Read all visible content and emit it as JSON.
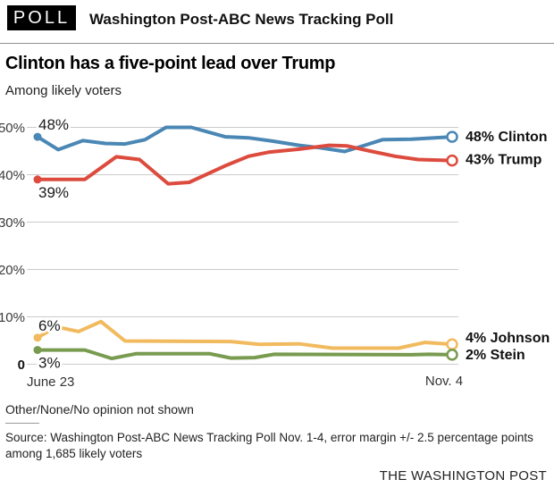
{
  "header": {
    "badge": "POLL",
    "title": "Washington Post-ABC News Tracking Poll"
  },
  "chart_data": {
    "type": "line",
    "title": "Clinton has a five-point lead over Trump",
    "subtitle": "Among likely voters",
    "x_axis": {
      "start_label": "June 23",
      "end_label": "Nov. 4"
    },
    "y_axis": {
      "unit": "percent",
      "tick_values": [
        50,
        40,
        30,
        20,
        10,
        0
      ],
      "tick_labels": [
        "50%",
        "40%",
        "30%",
        "20%",
        "10%",
        "0"
      ],
      "range": [
        0,
        52
      ],
      "gridlines": true,
      "gridline_color": "#cbcbcb"
    },
    "legend_position": "right-end-of-line",
    "series": [
      {
        "name": "Clinton",
        "color": "#4a87b4",
        "start_label": "48%",
        "start_label_pos": "above",
        "end_label": "48% Clinton",
        "start_value": 48,
        "end_value": 48,
        "points": [
          [
            0,
            48
          ],
          [
            0.05,
            45.3
          ],
          [
            0.11,
            47.2
          ],
          [
            0.164,
            46.6
          ],
          [
            0.211,
            46.5
          ],
          [
            0.259,
            47.4
          ],
          [
            0.31,
            50
          ],
          [
            0.371,
            50
          ],
          [
            0.453,
            48
          ],
          [
            0.509,
            47.8
          ],
          [
            0.567,
            47.1
          ],
          [
            0.631,
            46.2
          ],
          [
            0.681,
            45.7
          ],
          [
            0.741,
            44.9
          ],
          [
            0.789,
            46.2
          ],
          [
            0.832,
            47.4
          ],
          [
            0.901,
            47.5
          ],
          [
            1,
            48
          ]
        ]
      },
      {
        "name": "Trump",
        "color": "#dc4b3e",
        "start_label": "39%",
        "start_label_pos": "below",
        "end_label": "43% Trump",
        "start_value": 39,
        "end_value": 43,
        "points": [
          [
            0,
            39
          ],
          [
            0.114,
            39
          ],
          [
            0.19,
            43.8
          ],
          [
            0.246,
            43.2
          ],
          [
            0.315,
            38.1
          ],
          [
            0.366,
            38.4
          ],
          [
            0.453,
            41.9
          ],
          [
            0.509,
            43.9
          ],
          [
            0.56,
            44.8
          ],
          [
            0.631,
            45.4
          ],
          [
            0.703,
            46.2
          ],
          [
            0.746,
            46.1
          ],
          [
            0.797,
            45.1
          ],
          [
            0.862,
            43.9
          ],
          [
            0.918,
            43.2
          ],
          [
            1,
            43
          ]
        ]
      },
      {
        "name": "Johnson",
        "color": "#f1ba5e",
        "start_label": "6%",
        "start_label_pos": "above",
        "end_label": "4% Johnson",
        "start_value": 6,
        "end_value": 4,
        "points": [
          [
            0,
            5.6
          ],
          [
            0.045,
            7.9
          ],
          [
            0.099,
            6.9
          ],
          [
            0.153,
            9
          ],
          [
            0.211,
            4.9
          ],
          [
            0.466,
            4.8
          ],
          [
            0.534,
            4.2
          ],
          [
            0.631,
            4.3
          ],
          [
            0.711,
            3.4
          ],
          [
            0.871,
            3.4
          ],
          [
            0.935,
            4.6
          ],
          [
            1,
            4.2
          ]
        ]
      },
      {
        "name": "Stein",
        "color": "#789b4f",
        "start_label": "3%",
        "start_label_pos": "below",
        "end_label": "2% Stein",
        "start_value": 3,
        "end_value": 2,
        "points": [
          [
            0,
            3
          ],
          [
            0.114,
            3
          ],
          [
            0.179,
            1.2
          ],
          [
            0.237,
            2.2
          ],
          [
            0.416,
            2.2
          ],
          [
            0.466,
            1.3
          ],
          [
            0.524,
            1.4
          ],
          [
            0.571,
            2.1
          ],
          [
            0.901,
            2.0
          ],
          [
            0.944,
            2.1
          ],
          [
            1,
            2
          ]
        ]
      }
    ]
  },
  "footer": {
    "note": "Other/None/No opinion not shown",
    "source": "Source: Washington Post-ABC News Tracking Poll Nov. 1-4, error margin +/- 2.5 percentage points among 1,685 likely voters",
    "publisher": "THE WASHINGTON POST"
  }
}
